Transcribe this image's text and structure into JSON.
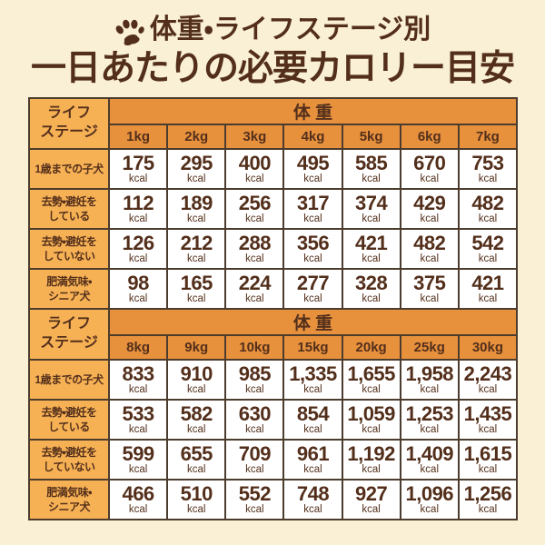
{
  "header": {
    "title_line1": "体重・ライフステージ別",
    "title_line2": "一日あたりの必要カロリー目安",
    "paw_icon": "paw-icon"
  },
  "colors": {
    "background": "#faf0d5",
    "header-orange": "#e8913d",
    "label-orange": "#f7b155",
    "text-brown": "#532f1b",
    "border": "#4c3c2d",
    "cell-white": "#ffffff"
  },
  "table_common": {
    "life_stage_header": [
      "ライフ",
      "ステージ"
    ],
    "weight_header": "体 重",
    "unit": "kcal"
  },
  "tables": [
    {
      "weights": [
        "1kg",
        "2kg",
        "3kg",
        "4kg",
        "5kg",
        "6kg",
        "7kg"
      ],
      "rows": [
        {
          "label": [
            "1歳までの子犬"
          ],
          "values": [
            "175",
            "295",
            "400",
            "495",
            "585",
            "670",
            "753"
          ]
        },
        {
          "label": [
            "去勢・避妊を",
            "している"
          ],
          "values": [
            "112",
            "189",
            "256",
            "317",
            "374",
            "429",
            "482"
          ]
        },
        {
          "label": [
            "去勢・避妊を",
            "していない"
          ],
          "values": [
            "126",
            "212",
            "288",
            "356",
            "421",
            "482",
            "542"
          ]
        },
        {
          "label": [
            "肥満気味・",
            "シニア犬"
          ],
          "values": [
            "98",
            "165",
            "224",
            "277",
            "328",
            "375",
            "421"
          ]
        }
      ]
    },
    {
      "weights": [
        "8kg",
        "9kg",
        "10kg",
        "15kg",
        "20kg",
        "25kg",
        "30kg"
      ],
      "rows": [
        {
          "label": [
            "1歳までの子犬"
          ],
          "values": [
            "833",
            "910",
            "985",
            "1,335",
            "1,655",
            "1,958",
            "2,243"
          ]
        },
        {
          "label": [
            "去勢・避妊を",
            "している"
          ],
          "values": [
            "533",
            "582",
            "630",
            "854",
            "1,059",
            "1,253",
            "1,435"
          ]
        },
        {
          "label": [
            "去勢・避妊を",
            "していない"
          ],
          "values": [
            "599",
            "655",
            "709",
            "961",
            "1,192",
            "1,409",
            "1,615"
          ]
        },
        {
          "label": [
            "肥満気味・",
            "シニア犬"
          ],
          "values": [
            "466",
            "510",
            "552",
            "748",
            "927",
            "1,096",
            "1,256"
          ]
        }
      ]
    }
  ],
  "chart_data": {
    "type": "table",
    "title": "体重・ライフステージ別 一日あたりの必要カロリー目安",
    "row_header": "ライフステージ",
    "column_header": "体重",
    "unit": "kcal",
    "columns_kg": [
      1,
      2,
      3,
      4,
      5,
      6,
      7,
      8,
      9,
      10,
      15,
      20,
      25,
      30
    ],
    "rows": [
      {
        "life_stage": "1歳までの子犬",
        "kcal": [
          175,
          295,
          400,
          495,
          585,
          670,
          753,
          833,
          910,
          985,
          1335,
          1655,
          1958,
          2243
        ]
      },
      {
        "life_stage": "去勢・避妊をしている",
        "kcal": [
          112,
          189,
          256,
          317,
          374,
          429,
          482,
          533,
          582,
          630,
          854,
          1059,
          1253,
          1435
        ]
      },
      {
        "life_stage": "去勢・避妊をしていない",
        "kcal": [
          126,
          212,
          288,
          356,
          421,
          482,
          542,
          599,
          655,
          709,
          961,
          1192,
          1409,
          1615
        ]
      },
      {
        "life_stage": "肥満気味・シニア犬",
        "kcal": [
          98,
          165,
          224,
          277,
          328,
          375,
          421,
          466,
          510,
          552,
          748,
          927,
          1096,
          1256
        ]
      }
    ]
  }
}
